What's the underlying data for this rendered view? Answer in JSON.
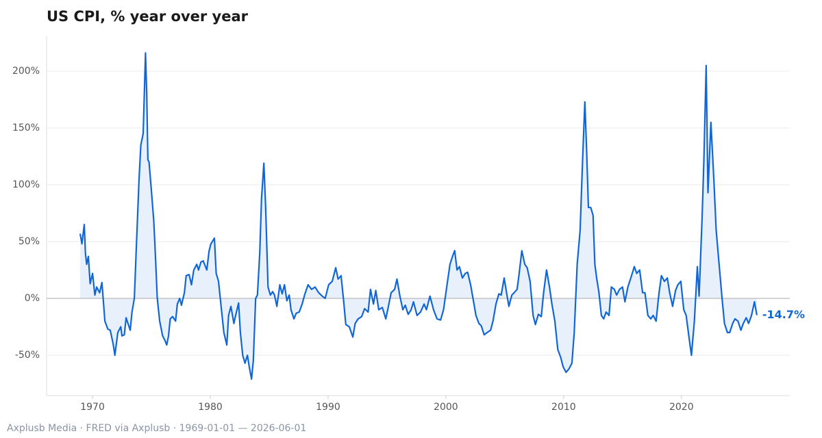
{
  "chart_data": {
    "type": "line",
    "title": "US CPI, % year over year",
    "footer": "Axplusb Media · FRED via Axplusb · 1969-01-01 — 2026-06-01",
    "end_label": "-14.7%",
    "color": "#1166d6",
    "fill_color": "#e8f0fb",
    "grid": true,
    "xlim": [
      1966.1,
      2029.2
    ],
    "xticks": [
      1970,
      1980,
      1990,
      2000,
      2010,
      2020
    ],
    "ylim": [
      -85.5,
      230.7
    ],
    "yticks": [
      {
        "value": -50,
        "label": "-50%"
      },
      {
        "value": 0,
        "label": "0%"
      },
      {
        "value": 50,
        "label": "50%"
      },
      {
        "value": 100,
        "label": "100%"
      },
      {
        "value": 150,
        "label": "150%"
      },
      {
        "value": 200,
        "label": "200%"
      }
    ],
    "x": [
      1968.95,
      1969.1,
      1969.3,
      1969.4,
      1969.5,
      1969.65,
      1969.8,
      1970.0,
      1970.2,
      1970.35,
      1970.6,
      1970.8,
      1971.05,
      1971.3,
      1971.5,
      1971.75,
      1971.9,
      1972.15,
      1972.4,
      1972.5,
      1972.7,
      1972.85,
      1973.1,
      1973.2,
      1973.35,
      1973.55,
      1973.7,
      1973.95,
      1974.1,
      1974.3,
      1974.5,
      1974.6,
      1974.7,
      1974.8,
      1975.0,
      1975.2,
      1975.35,
      1975.5,
      1975.7,
      1975.95,
      1976.15,
      1976.3,
      1976.45,
      1976.6,
      1976.8,
      1977.05,
      1977.2,
      1977.4,
      1977.55,
      1977.8,
      1977.95,
      1978.2,
      1978.4,
      1978.6,
      1978.85,
      1979.0,
      1979.2,
      1979.4,
      1979.7,
      1979.9,
      1980.05,
      1980.35,
      1980.5,
      1980.7,
      1980.95,
      1981.15,
      1981.4,
      1981.55,
      1981.75,
      1982.0,
      1982.15,
      1982.4,
      1982.55,
      1982.75,
      1982.95,
      1983.15,
      1983.3,
      1983.5,
      1983.65,
      1983.85,
      1984.0,
      1984.2,
      1984.35,
      1984.55,
      1984.7,
      1984.9,
      1985.1,
      1985.3,
      1985.45,
      1985.65,
      1985.9,
      1986.1,
      1986.3,
      1986.5,
      1986.7,
      1986.85,
      1987.1,
      1987.3,
      1987.55,
      1987.8,
      1988.0,
      1988.3,
      1988.6,
      1988.9,
      1989.2,
      1989.5,
      1989.75,
      1990.05,
      1990.35,
      1990.65,
      1990.85,
      1991.1,
      1991.3,
      1991.5,
      1991.8,
      1992.1,
      1992.3,
      1992.55,
      1992.85,
      1993.1,
      1993.4,
      1993.6,
      1993.85,
      1994.05,
      1994.3,
      1994.6,
      1994.9,
      1995.1,
      1995.35,
      1995.65,
      1995.85,
      1996.1,
      1996.35,
      1996.55,
      1996.8,
      1997.05,
      1997.25,
      1997.55,
      1997.85,
      1998.15,
      1998.35,
      1998.65,
      1998.95,
      1999.25,
      1999.55,
      1999.8,
      2000.1,
      2000.35,
      2000.6,
      2000.75,
      2000.95,
      2001.15,
      2001.4,
      2001.65,
      2001.85,
      2002.1,
      2002.3,
      2002.55,
      2002.8,
      2003.0,
      2003.25,
      2003.5,
      2003.8,
      2004.0,
      2004.25,
      2004.5,
      2004.7,
      2004.95,
      2005.15,
      2005.35,
      2005.6,
      2005.8,
      2006.05,
      2006.2,
      2006.45,
      2006.7,
      2006.9,
      2007.15,
      2007.4,
      2007.6,
      2007.85,
      2008.1,
      2008.3,
      2008.55,
      2008.8,
      2009.0,
      2009.25,
      2009.5,
      2009.75,
      2009.95,
      2010.2,
      2010.45,
      2010.7,
      2010.9,
      2011.15,
      2011.4,
      2011.6,
      2011.8,
      2011.95,
      2012.1,
      2012.3,
      2012.5,
      2012.65,
      2012.8,
      2013.0,
      2013.2,
      2013.4,
      2013.6,
      2013.85,
      2014.05,
      2014.3,
      2014.5,
      2014.75,
      2015.0,
      2015.2,
      2015.45,
      2015.7,
      2016.0,
      2016.2,
      2016.45,
      2016.7,
      2016.9,
      2017.15,
      2017.4,
      2017.6,
      2017.85,
      2018.1,
      2018.3,
      2018.55,
      2018.8,
      2019.0,
      2019.25,
      2019.5,
      2019.7,
      2019.95,
      2020.2,
      2020.4,
      2020.65,
      2020.85,
      2021.1,
      2021.35,
      2021.5,
      2021.75,
      2021.9,
      2022.1,
      2022.25,
      2022.5,
      2022.75,
      2022.95,
      2023.2,
      2023.45,
      2023.65,
      2023.9,
      2024.1,
      2024.35,
      2024.55,
      2024.8,
      2025.05,
      2025.25,
      2025.5,
      2025.7,
      2025.95,
      2026.2,
      2026.4
    ],
    "values": [
      57,
      48,
      65,
      40,
      30,
      37,
      13,
      22,
      3,
      10,
      5,
      14,
      -20,
      -27,
      -28,
      -40,
      -50,
      -30,
      -25,
      -33,
      -32,
      -17,
      -25,
      -28,
      -12,
      0,
      40,
      105,
      135,
      145,
      216,
      180,
      122,
      120,
      95,
      68,
      35,
      0,
      -20,
      -33,
      -37,
      -41,
      -33,
      -18,
      -16,
      -20,
      -5,
      0,
      -6,
      5,
      20,
      21,
      12,
      25,
      30,
      25,
      32,
      33,
      25,
      42,
      48,
      53,
      22,
      15,
      -10,
      -30,
      -41,
      -15,
      -7,
      -22,
      -15,
      -4,
      -30,
      -50,
      -57,
      -50,
      -60,
      -71,
      -55,
      0,
      3,
      40,
      88,
      119,
      80,
      10,
      3,
      6,
      3,
      -7,
      12,
      4,
      12,
      -2,
      3,
      -10,
      -18,
      -13,
      -12,
      -5,
      3,
      12,
      8,
      10,
      5,
      2,
      0,
      12,
      15,
      27,
      17,
      20,
      0,
      -23,
      -25,
      -34,
      -22,
      -18,
      -16,
      -9,
      -12,
      8,
      -5,
      7,
      -10,
      -8,
      -18,
      -8,
      5,
      8,
      17,
      2,
      -10,
      -6,
      -14,
      -10,
      -3,
      -15,
      -12,
      -5,
      -10,
      2,
      -10,
      -18,
      -19,
      -10,
      12,
      30,
      38,
      42,
      25,
      28,
      18,
      22,
      23,
      12,
      0,
      -15,
      -22,
      -24,
      -32,
      -30,
      -28,
      -20,
      -5,
      4,
      3,
      18,
      5,
      -7,
      3,
      5,
      8,
      20,
      42,
      30,
      27,
      15,
      -15,
      -23,
      -14,
      -16,
      5,
      25,
      10,
      -5,
      -20,
      -45,
      -52,
      -60,
      -65,
      -62,
      -57,
      -30,
      30,
      60,
      120,
      173,
      130,
      80,
      80,
      73,
      30,
      18,
      5,
      -15,
      -18,
      -12,
      -15,
      10,
      8,
      3,
      8,
      10,
      -3,
      10,
      18,
      28,
      22,
      25,
      5,
      5,
      -15,
      -18,
      -15,
      -20,
      5,
      20,
      15,
      18,
      5,
      -7,
      7,
      12,
      15,
      -10,
      -15,
      -35,
      -50,
      -20,
      28,
      2,
      70,
      120,
      205,
      93,
      155,
      105,
      60,
      30,
      0,
      -22,
      -30,
      -30,
      -22,
      -18,
      -20,
      -28,
      -22,
      -17,
      -22,
      -15,
      -3,
      -14.7
    ]
  }
}
